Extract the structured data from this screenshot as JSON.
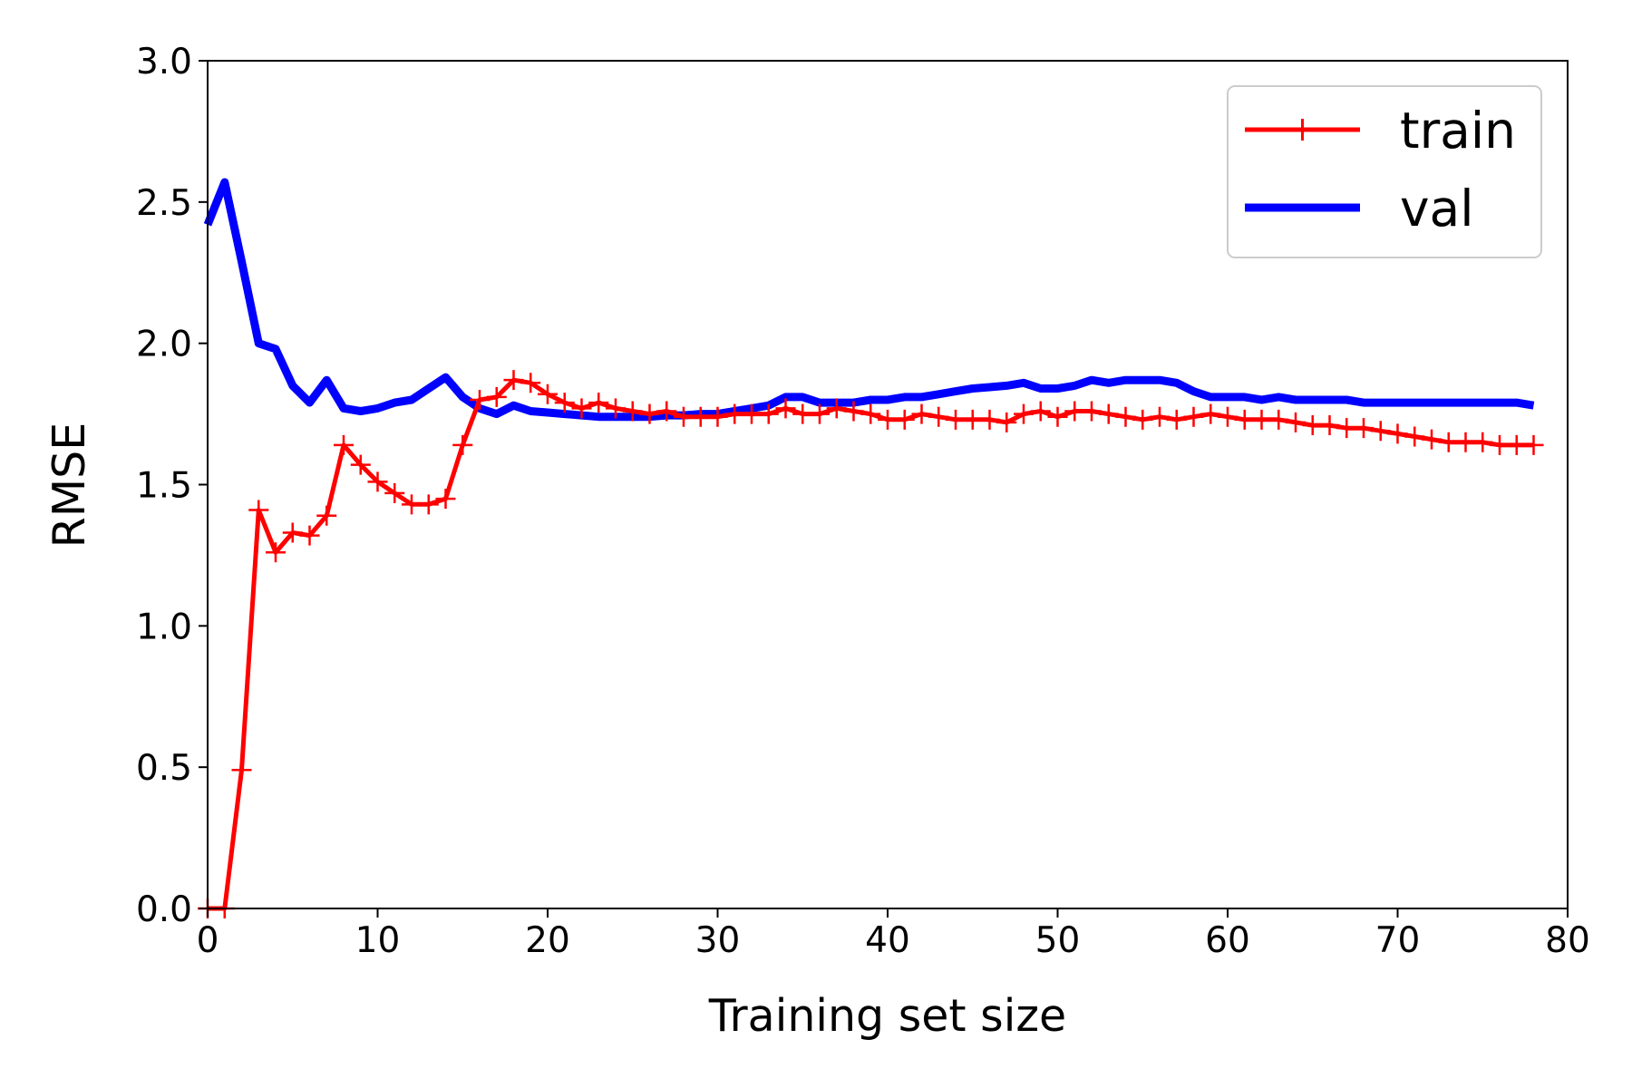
{
  "chart_data": {
    "type": "line",
    "xlabel": "Training set size",
    "ylabel": "RMSE",
    "xlim": [
      0,
      80
    ],
    "ylim": [
      0,
      3
    ],
    "xticks": [
      0,
      10,
      20,
      30,
      40,
      50,
      60,
      70,
      80
    ],
    "yticks": [
      0.0,
      0.5,
      1.0,
      1.5,
      2.0,
      2.5,
      3.0
    ],
    "xtick_labels": [
      "0",
      "10",
      "20",
      "30",
      "40",
      "50",
      "60",
      "70",
      "80"
    ],
    "ytick_labels": [
      "0.0",
      "0.5",
      "1.0",
      "1.5",
      "2.0",
      "2.5",
      "3.0"
    ],
    "grid": false,
    "legend": "top-right",
    "x": [
      0,
      1,
      2,
      3,
      4,
      5,
      6,
      7,
      8,
      9,
      10,
      11,
      12,
      13,
      14,
      15,
      16,
      17,
      18,
      19,
      20,
      21,
      22,
      23,
      24,
      25,
      26,
      27,
      28,
      29,
      30,
      31,
      32,
      33,
      34,
      35,
      36,
      37,
      38,
      39,
      40,
      41,
      42,
      43,
      44,
      45,
      46,
      47,
      48,
      49,
      50,
      51,
      52,
      53,
      54,
      55,
      56,
      57,
      58,
      59,
      60,
      61,
      62,
      63,
      64,
      65,
      66,
      67,
      68,
      69,
      70,
      71,
      72,
      73,
      74,
      75,
      76,
      77,
      78
    ],
    "series": [
      {
        "name": "train",
        "color": "#ff0000",
        "marker": "+",
        "line_width": "thin",
        "values": [
          0.0,
          0.0,
          0.49,
          1.41,
          1.26,
          1.33,
          1.32,
          1.39,
          1.64,
          1.57,
          1.51,
          1.47,
          1.43,
          1.43,
          1.45,
          1.64,
          1.8,
          1.81,
          1.87,
          1.86,
          1.82,
          1.79,
          1.77,
          1.79,
          1.77,
          1.76,
          1.75,
          1.76,
          1.74,
          1.74,
          1.74,
          1.75,
          1.75,
          1.75,
          1.77,
          1.75,
          1.75,
          1.77,
          1.76,
          1.75,
          1.73,
          1.73,
          1.75,
          1.74,
          1.73,
          1.73,
          1.73,
          1.72,
          1.75,
          1.76,
          1.74,
          1.76,
          1.76,
          1.75,
          1.74,
          1.73,
          1.74,
          1.73,
          1.74,
          1.75,
          1.74,
          1.73,
          1.73,
          1.73,
          1.72,
          1.71,
          1.71,
          1.7,
          1.7,
          1.69,
          1.68,
          1.67,
          1.66,
          1.65,
          1.65,
          1.65,
          1.64,
          1.64,
          1.64
        ]
      },
      {
        "name": "val",
        "color": "#0000ff",
        "marker": "none",
        "line_width": "thick",
        "values": [
          2.42,
          2.57,
          2.29,
          2.0,
          1.98,
          1.85,
          1.79,
          1.87,
          1.77,
          1.76,
          1.77,
          1.79,
          1.8,
          1.84,
          1.88,
          1.81,
          1.77,
          1.75,
          1.78,
          1.76,
          1.755,
          1.75,
          1.745,
          1.74,
          1.74,
          1.74,
          1.74,
          1.745,
          1.745,
          1.75,
          1.75,
          1.76,
          1.77,
          1.78,
          1.81,
          1.81,
          1.79,
          1.79,
          1.79,
          1.8,
          1.8,
          1.81,
          1.81,
          1.82,
          1.83,
          1.84,
          1.845,
          1.85,
          1.86,
          1.84,
          1.84,
          1.85,
          1.87,
          1.86,
          1.87,
          1.87,
          1.87,
          1.86,
          1.83,
          1.81,
          1.81,
          1.81,
          1.8,
          1.81,
          1.8,
          1.8,
          1.8,
          1.8,
          1.79,
          1.79,
          1.79,
          1.79,
          1.79,
          1.79,
          1.79,
          1.79,
          1.79,
          1.79,
          1.78
        ]
      }
    ]
  }
}
